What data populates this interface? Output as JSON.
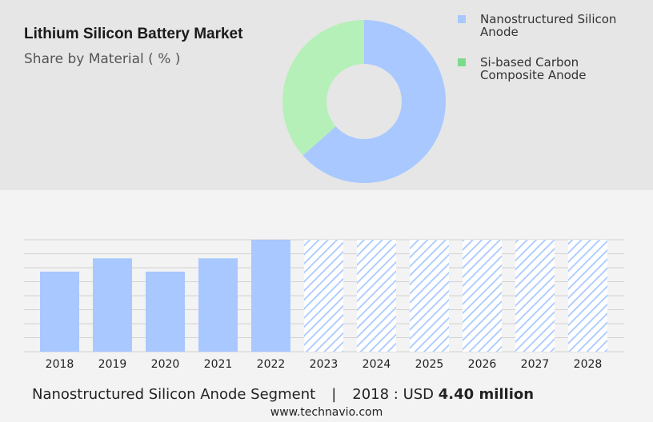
{
  "header": {
    "title": "Lithium Silicon Battery Market",
    "subtitle": "Share by Material ( % )"
  },
  "legend": [
    {
      "label": "Nanostructured Silicon Anode",
      "color": "#a8c8ff"
    },
    {
      "label": "Si-based Carbon Composite Anode",
      "color": "#7ddc8c"
    }
  ],
  "chart_data": [
    {
      "type": "pie",
      "title": "Share by Material ( % )",
      "donut": true,
      "slices": [
        {
          "label": "Nanostructured Silicon Anode",
          "value": 63.5,
          "color": "#a8c8ff"
        },
        {
          "label": "Si-based Carbon Composite Anode",
          "value": 36.5,
          "color": "#b5f0b8"
        }
      ]
    },
    {
      "type": "bar",
      "categories": [
        "2018",
        "2019",
        "2020",
        "2021",
        "2022",
        "2023",
        "2024",
        "2025",
        "2026",
        "2027",
        "2028"
      ],
      "values": [
        4.4,
        5.13,
        4.4,
        5.13,
        6.15,
        6.15,
        6.15,
        6.15,
        6.15,
        6.15,
        6.15
      ],
      "forecast_from": "2023",
      "bar_color": "#a8c8ff",
      "forecast_color": "#a8c8ff",
      "grid": true,
      "ylim": [
        0,
        6.15
      ]
    }
  ],
  "footer": {
    "segment": "Nanostructured Silicon Anode Segment",
    "separator": "|",
    "prefix": "2018 : USD ",
    "value": "4.40 million"
  },
  "site": "www.technavio.com"
}
